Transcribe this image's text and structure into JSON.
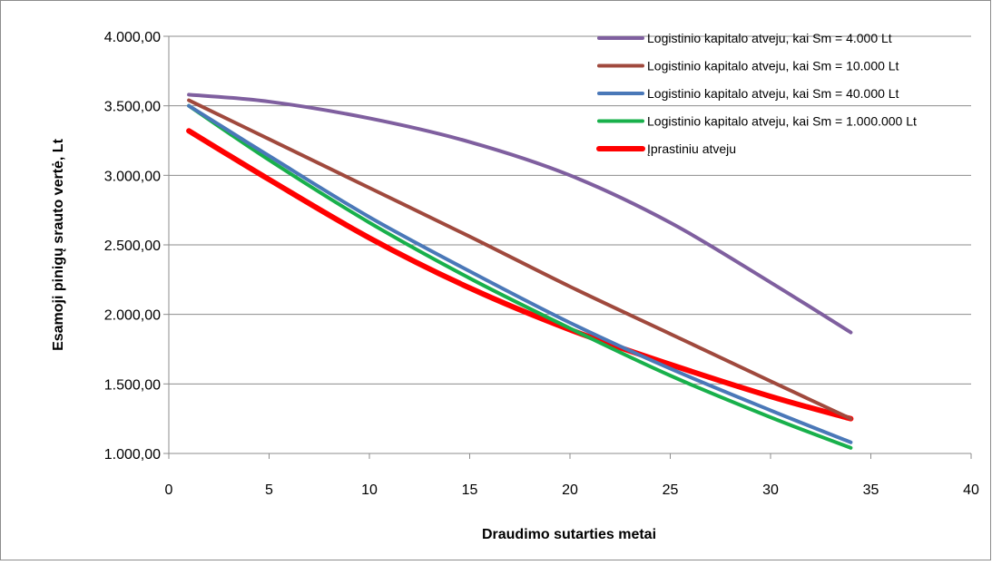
{
  "chart_data": {
    "type": "line",
    "title": "",
    "xlabel": "Draudimo sutarties metai",
    "ylabel": "Esamoji pinigų srauto vertė, Lt",
    "xlim": [
      0,
      40
    ],
    "ylim": [
      1000,
      4000
    ],
    "x_ticks": [
      0,
      5,
      10,
      15,
      20,
      25,
      30,
      35,
      40
    ],
    "x_tick_labels": [
      "0",
      "5",
      "10",
      "15",
      "20",
      "25",
      "30",
      "35",
      "40"
    ],
    "y_ticks": [
      1000,
      1500,
      2000,
      2500,
      3000,
      3500,
      4000
    ],
    "y_tick_labels": [
      "1.000,00",
      "1.500,00",
      "2.000,00",
      "2.500,00",
      "3.000,00",
      "3.500,00",
      "4.000,00"
    ],
    "grid": "horizontal",
    "legend_position": "top-right",
    "series": [
      {
        "name": "Logistinio kapitalo atveju, kai Sm = 4.000 Lt",
        "color": "#7f5f9f",
        "x": [
          1,
          5,
          10,
          15,
          20,
          25,
          30,
          34
        ],
        "y": [
          3580,
          3530,
          3410,
          3240,
          3000,
          2660,
          2230,
          1870
        ]
      },
      {
        "name": "Logistinio kapitalo atveju, kai Sm = 10.000 Lt",
        "color": "#a0493d",
        "x": [
          1,
          5,
          10,
          15,
          20,
          25,
          30,
          34
        ],
        "y": [
          3540,
          3260,
          2910,
          2560,
          2200,
          1860,
          1520,
          1250
        ]
      },
      {
        "name": "Logistinio kapitalo atveju, kai Sm = 40.000 Lt",
        "color": "#4a78b8",
        "x": [
          1,
          5,
          10,
          15,
          20,
          25,
          30,
          34
        ],
        "y": [
          3500,
          3140,
          2700,
          2310,
          1940,
          1610,
          1310,
          1080
        ]
      },
      {
        "name": "Logistinio kapitalo atveju, kai Sm = 1.000.000 Lt",
        "color": "#18b04b",
        "x": [
          1,
          5,
          10,
          15,
          20,
          25,
          30,
          34
        ],
        "y": [
          3500,
          3110,
          2660,
          2260,
          1900,
          1560,
          1260,
          1040
        ]
      },
      {
        "name": "Įprastiniu atveju",
        "color": "#ff0000",
        "x": [
          1,
          5,
          10,
          15,
          20,
          25,
          30,
          34
        ],
        "y": [
          3320,
          2970,
          2550,
          2190,
          1890,
          1640,
          1410,
          1250
        ]
      }
    ]
  }
}
